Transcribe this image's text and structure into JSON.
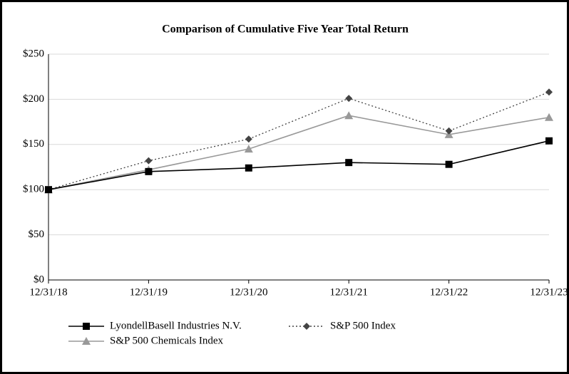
{
  "chart_data": {
    "type": "line",
    "title": "Comparison of Cumulative Five Year Total Return",
    "categories": [
      "12/31/18",
      "12/31/19",
      "12/31/20",
      "12/31/21",
      "12/31/22",
      "12/31/23"
    ],
    "series": [
      {
        "name": "LyondellBasell Industries N.V.",
        "color": "#000000",
        "marker": "square",
        "line_style": "solid",
        "values": [
          100,
          120,
          124,
          130,
          128,
          154
        ]
      },
      {
        "name": "S&P 500 Index",
        "color": "#444444",
        "marker": "diamond",
        "line_style": "dotted",
        "values": [
          100,
          132,
          156,
          201,
          165,
          208
        ]
      },
      {
        "name": "S&P 500 Chemicals Index",
        "color": "#999999",
        "marker": "triangle",
        "line_style": "solid",
        "values": [
          100,
          122,
          145,
          182,
          161,
          180
        ]
      }
    ],
    "ylim": [
      0,
      250
    ],
    "yticks": [
      {
        "value": 0,
        "label": "$0"
      },
      {
        "value": 50,
        "label": "$50"
      },
      {
        "value": 100,
        "label": "$100"
      },
      {
        "value": 150,
        "label": "$150"
      },
      {
        "value": 200,
        "label": "$200"
      },
      {
        "value": 250,
        "label": "$250"
      }
    ],
    "grid": true
  }
}
